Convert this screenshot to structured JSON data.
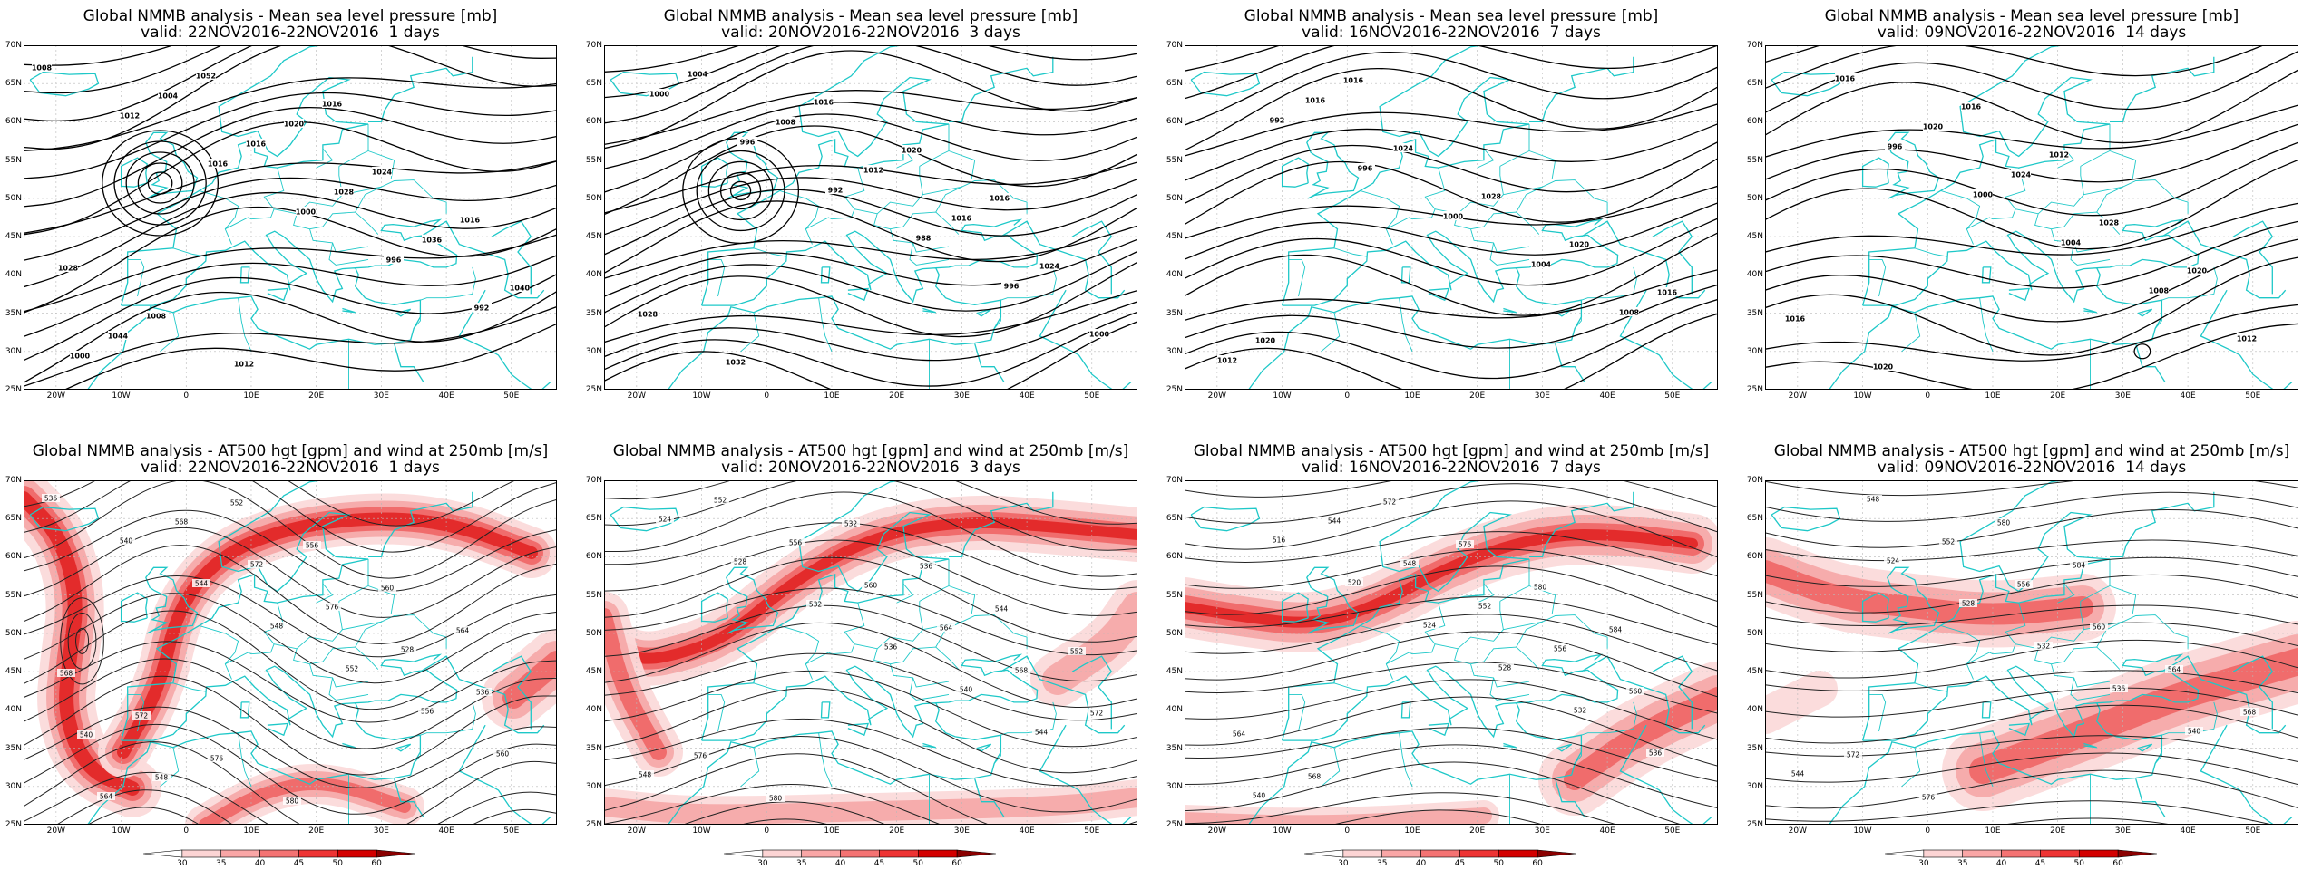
{
  "panels": [
    {
      "title": "Global NMMB analysis - Mean sea level pressure [mb]",
      "valid": "valid: 22NOV2016-22NOV2016  1 days",
      "kind": "mslp"
    },
    {
      "title": "Global NMMB analysis - Mean sea level pressure [mb]",
      "valid": "valid: 20NOV2016-22NOV2016  3 days",
      "kind": "mslp"
    },
    {
      "title": "Global NMMB analysis - Mean sea level pressure [mb]",
      "valid": "valid: 16NOV2016-22NOV2016  7 days",
      "kind": "mslp"
    },
    {
      "title": "Global NMMB analysis - Mean sea level pressure [mb]",
      "valid": "valid: 09NOV2016-22NOV2016  14 days",
      "kind": "mslp"
    },
    {
      "title": "Global NMMB analysis - AT500 hgt [gpm] and wind at 250mb [m/s]",
      "valid": "valid: 22NOV2016-22NOV2016  1 days",
      "kind": "z500"
    },
    {
      "title": "Global NMMB analysis - AT500 hgt [gpm] and wind at 250mb [m/s]",
      "valid": "valid: 20NOV2016-22NOV2016  3 days",
      "kind": "z500"
    },
    {
      "title": "Global NMMB analysis - AT500 hgt [gpm] and wind at 250mb [m/s]",
      "valid": "valid: 16NOV2016-22NOV2016  7 days",
      "kind": "z500"
    },
    {
      "title": "Global NMMB analysis - AT500 hgt [gpm] and wind at 250mb [m/s]",
      "valid": "valid: 09NOV2016-22NOV2016  14 days",
      "kind": "z500"
    }
  ],
  "lat_labels": [
    "70N",
    "65N",
    "60N",
    "55N",
    "50N",
    "45N",
    "40N",
    "35N",
    "30N",
    "25N"
  ],
  "lon_labels": [
    "20W",
    "10W",
    "0",
    "10E",
    "20E",
    "30E",
    "40E",
    "50E"
  ],
  "colorbar": {
    "ticks": [
      "30",
      "35",
      "40",
      "45",
      "50",
      "60"
    ],
    "colors": [
      "#ffffff",
      "#fcd4d4",
      "#f9a6a6",
      "#f47373",
      "#ee3434",
      "#d30000",
      "#8a0000"
    ]
  },
  "mslp_labels": [
    [
      "1008",
      "1012",
      "1016",
      "1000",
      "996",
      "992",
      "1000",
      "1004",
      "1016",
      "1028",
      "1036",
      "1040",
      "1044",
      "1052",
      "1020",
      "1024",
      "1016",
      "1028",
      "1008",
      "1012",
      "1016"
    ],
    [
      "1000",
      "996",
      "992",
      "988",
      "996",
      "1000",
      "1004",
      "1008",
      "1012",
      "1016",
      "1024",
      "1028",
      "1032",
      "1016",
      "1020",
      "1016"
    ],
    [
      "992",
      "996",
      "1000",
      "1004",
      "1008",
      "1012",
      "1016",
      "1024",
      "1028",
      "1020",
      "1016",
      "1020",
      "1016"
    ],
    [
      "996",
      "1000",
      "1004",
      "1008",
      "1012",
      "1016",
      "1020",
      "1024",
      "1028",
      "1020",
      "1016",
      "1020",
      "1016",
      "1012"
    ]
  ],
  "z500_labels": [
    [
      "536",
      "540",
      "544",
      "548",
      "552",
      "556",
      "560",
      "564",
      "568",
      "572",
      "576",
      "528",
      "536",
      "540",
      "548",
      "552",
      "556",
      "560",
      "564",
      "568",
      "572",
      "576",
      "580"
    ],
    [
      "524",
      "528",
      "532",
      "536",
      "540",
      "544",
      "548",
      "552",
      "556",
      "560",
      "564",
      "568",
      "572",
      "576",
      "580",
      "532",
      "536",
      "544",
      "552"
    ],
    [
      "516",
      "520",
      "524",
      "528",
      "532",
      "536",
      "540",
      "544",
      "548",
      "552",
      "556",
      "560",
      "564",
      "568",
      "572",
      "576",
      "580",
      "584"
    ],
    [
      "524",
      "528",
      "532",
      "536",
      "540",
      "544",
      "548",
      "552",
      "556",
      "560",
      "564",
      "568",
      "572",
      "576",
      "580",
      "584"
    ]
  ]
}
